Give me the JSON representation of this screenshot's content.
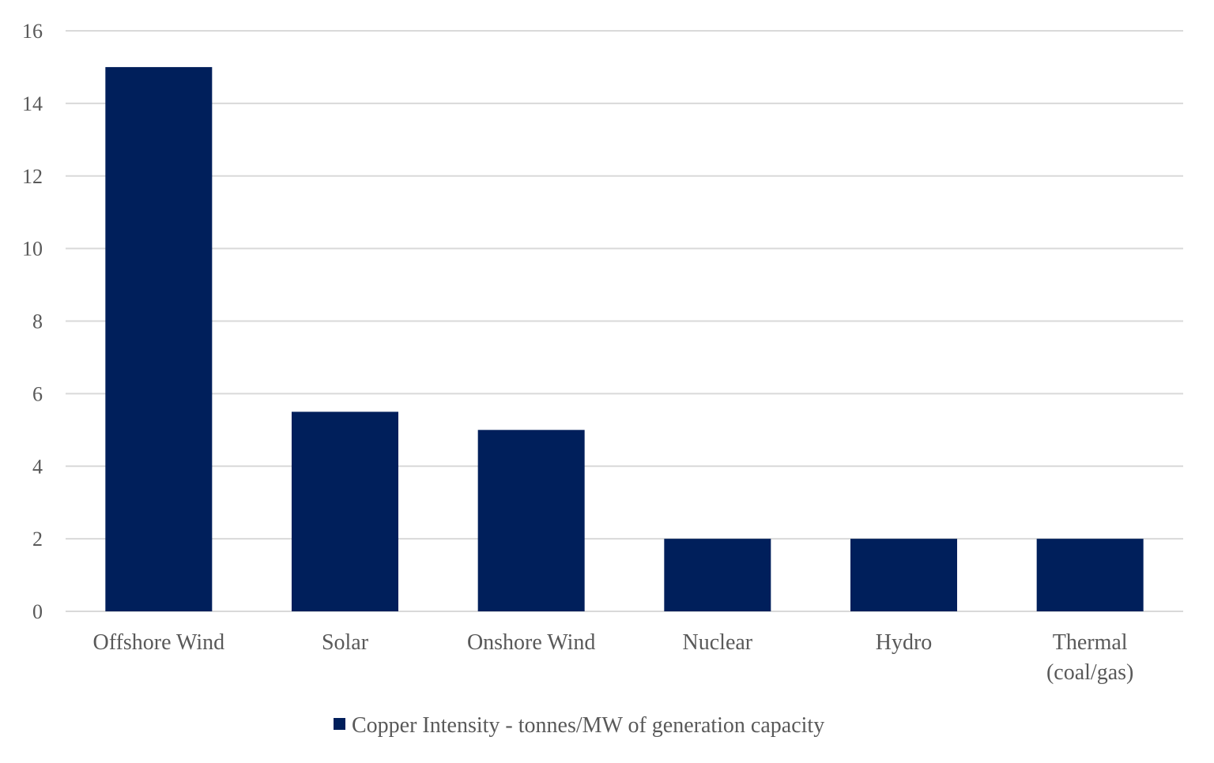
{
  "chart_data": {
    "type": "bar",
    "title": "",
    "xlabel": "",
    "ylabel": "",
    "categories": [
      "Offshore Wind",
      "Solar",
      "Onshore Wind",
      "Nuclear",
      "Hydro",
      "Thermal (coal/gas)"
    ],
    "category_lines": [
      [
        "Offshore Wind"
      ],
      [
        "Solar"
      ],
      [
        "Onshore Wind"
      ],
      [
        "Nuclear"
      ],
      [
        "Hydro"
      ],
      [
        "Thermal",
        "(coal/gas)"
      ]
    ],
    "series": [
      {
        "name": "Copper Intensity - tonnes/MW of generation capacity",
        "values": [
          15,
          5.5,
          5,
          2,
          2,
          2
        ],
        "color": "#001f5b"
      }
    ],
    "ylim": [
      0,
      16
    ],
    "yticks": [
      "0",
      "2",
      "4",
      "6",
      "8",
      "10",
      "12",
      "14",
      "16"
    ],
    "grid": true,
    "legend": "bottom",
    "colors": {
      "bar": "#001f5b",
      "grid": "#d9d9d9",
      "text": "#595959"
    }
  }
}
